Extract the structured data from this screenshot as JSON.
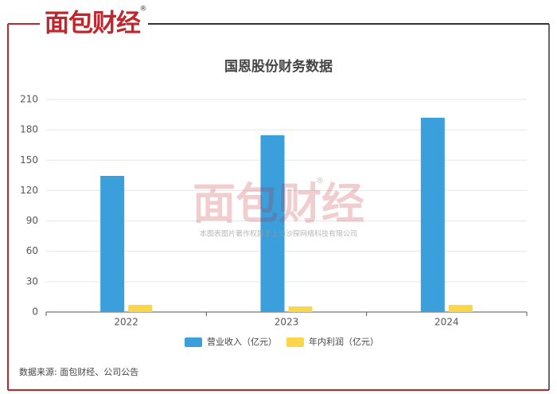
{
  "logo": {
    "name": "面包财经",
    "mark": "®"
  },
  "watermark": {
    "name": "面包财经",
    "mark": "®",
    "copyright": "本图表图片著作权属于上海沙探网络科技有限公司"
  },
  "source": "数据来源: 面包财经、公司公告",
  "chart_data": {
    "type": "bar",
    "title": "国恩股份财务数据",
    "categories": [
      "2022",
      "2023",
      "2024"
    ],
    "series": [
      {
        "name": "营业收入（亿元）",
        "color": "#3a9fdb",
        "values": [
          134.5,
          174.7,
          192
        ]
      },
      {
        "name": "年内利润（亿元）",
        "color": "#fbd54a",
        "values": [
          7.1,
          5.5,
          7
        ]
      }
    ],
    "ylim": [
      0,
      210
    ],
    "yticks": [
      0,
      30,
      60,
      90,
      120,
      150,
      180,
      210
    ],
    "grid": true,
    "legend": "bottom"
  }
}
